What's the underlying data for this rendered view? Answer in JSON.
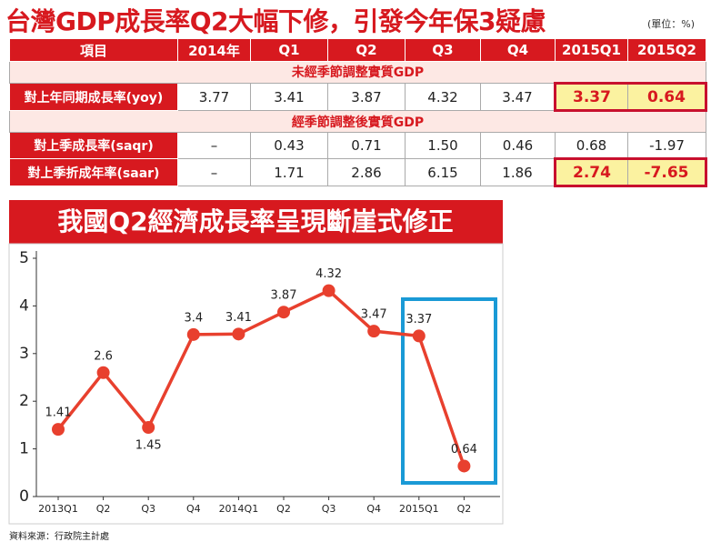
{
  "title": "台灣GDP成長率Q2大幅下修，引發今年保3疑慮",
  "unit": "(單位：%)",
  "table": {
    "header": [
      "項目",
      "2014年",
      "Q1",
      "Q2",
      "Q3",
      "Q4",
      "2015Q1",
      "2015Q2"
    ],
    "sections": [
      {
        "title": "未經季節調整實質GDP",
        "rows": [
          {
            "label": "對上年同期成長率(yoy)",
            "cells": [
              "3.77",
              "3.41",
              "3.87",
              "4.32",
              "3.47",
              "3.37",
              "0.64"
            ]
          }
        ]
      },
      {
        "title": "經季節調整後實質GDP",
        "rows": [
          {
            "label": "對上季成長率(saqr)",
            "cells": [
              "–",
              "0.43",
              "0.71",
              "1.50",
              "0.46",
              "0.68",
              "-1.97"
            ]
          },
          {
            "label": "對上季折成年率(saar)",
            "cells": [
              "–",
              "1.71",
              "2.86",
              "6.15",
              "1.86",
              "2.74",
              "-7.65"
            ]
          }
        ]
      }
    ]
  },
  "chart_data": {
    "type": "line",
    "title": "我國Q2經濟成長率呈現斷崖式修正",
    "categories": [
      "2013Q1",
      "Q2",
      "Q3",
      "Q4",
      "2014Q1",
      "Q2",
      "Q3",
      "Q4",
      "2015Q1",
      "Q2"
    ],
    "values": [
      1.41,
      2.6,
      1.45,
      3.4,
      3.41,
      3.87,
      4.32,
      3.47,
      3.37,
      0.64
    ],
    "color": "#e8402e",
    "ylim": [
      0,
      5
    ],
    "yticks": [
      0,
      1,
      2,
      3,
      4,
      5
    ],
    "grid": false
  },
  "source": "資料來源：行政院主計處"
}
